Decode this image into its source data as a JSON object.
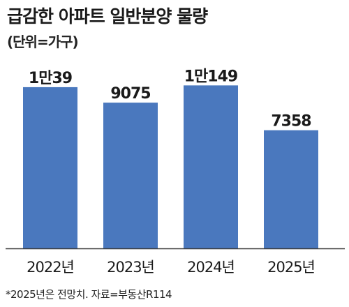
{
  "header": {
    "title": "급감한 아파트 일반분양 물량",
    "subtitle": "(단위=가구)"
  },
  "footnote": "*2025년은 전망치. 자료=부동산R114",
  "colors": {
    "bar": "#4a78be",
    "baseline": "#3a3a3a",
    "text": "#1a1a1a"
  },
  "chart_data": {
    "type": "bar",
    "categories": [
      "2022년",
      "2023년",
      "2024년",
      "2025년"
    ],
    "values": [
      10039,
      9075,
      10149,
      7358
    ],
    "data_labels": [
      "1만39",
      "9075",
      "1만149",
      "7358"
    ],
    "title": "급감한 아파트 일반분양 물량",
    "subtitle": "(단위=가구)",
    "xlabel": "",
    "ylabel": "",
    "ylim": [
      0,
      10600
    ],
    "grid": false,
    "legend": "none"
  }
}
